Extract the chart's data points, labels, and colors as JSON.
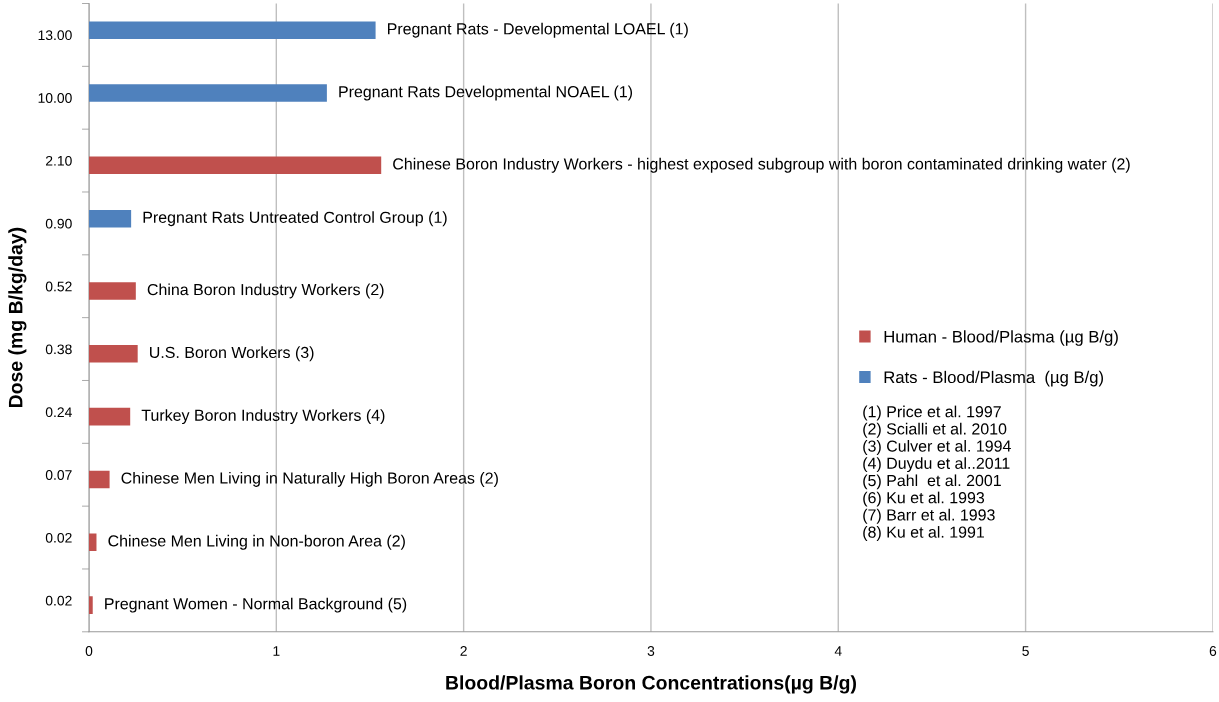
{
  "chart_data": {
    "type": "bar",
    "orientation": "horizontal",
    "xlabel": "Blood/Plasma Boron Concentrations(µg B/g)",
    "ylabel": "Dose (mg B/kg/day)",
    "categories": [
      "13.00",
      "10.00",
      "2.10",
      "0.90",
      "0.52",
      "0.38",
      "0.24",
      "0.07",
      "0.02",
      "0.02"
    ],
    "series": [
      {
        "name": "Human - Blood/Plasma (µg B/g)",
        "color": "#c0504d",
        "values": [
          null,
          null,
          1.56,
          null,
          0.25,
          0.26,
          0.22,
          0.11,
          0.04,
          0.02
        ]
      },
      {
        "name": "Rats - Blood/Plasma  (µg B/g)",
        "color": "#4f81bd",
        "values": [
          1.53,
          1.27,
          null,
          0.225,
          null,
          null,
          null,
          null,
          null,
          null
        ]
      }
    ],
    "xlim": [
      0,
      6
    ],
    "xticks": [
      0,
      1,
      2,
      3,
      4,
      5,
      6
    ],
    "grid": "x",
    "legend": "right",
    "annotations": [
      {
        "text": "Pregnant Rats - Developmental LOAEL (1)",
        "x": 1.53,
        "y": "13.00"
      },
      {
        "text": "Pregnant Rats Developmental NOAEL (1)",
        "x": 1.27,
        "y": "10.00"
      },
      {
        "text": "Chinese Boron Industry Workers - highest exposed subgroup with boron contaminated drinking water (2)",
        "x": 1.56,
        "y": "2.10"
      },
      {
        "text": "Pregnant Rats Untreated Control Group (1)",
        "x": 0.225,
        "y": "0.90"
      },
      {
        "text": "China Boron Industry Workers (2)",
        "x": 0.25,
        "y": "0.52"
      },
      {
        "text": "U.S. Boron Workers (3)",
        "x": 0.26,
        "y": "0.38"
      },
      {
        "text": "Turkey Boron Industry Workers (4)",
        "x": 0.22,
        "y": "0.24"
      },
      {
        "text": "Chinese Men Living in Naturally High Boron Areas (2)",
        "x": 0.11,
        "y": "0.07"
      },
      {
        "text": "Chinese Men Living in Non-boron Area (2)",
        "x": 0.04,
        "y": "0.02"
      },
      {
        "text": "Pregnant Women - Normal Background (5)",
        "x": 0.02
      },
      "(1) Price et al. 1997",
      "(2) Scialli et al. 2010",
      "(3) Culver et al. 1994",
      "(4) Duydu et al..2011",
      "(5) Pahl  et al. 2001",
      "(6) Ku et al. 1993",
      "(7) Barr et al. 1993",
      "(8) Ku et al. 1991"
    ]
  }
}
